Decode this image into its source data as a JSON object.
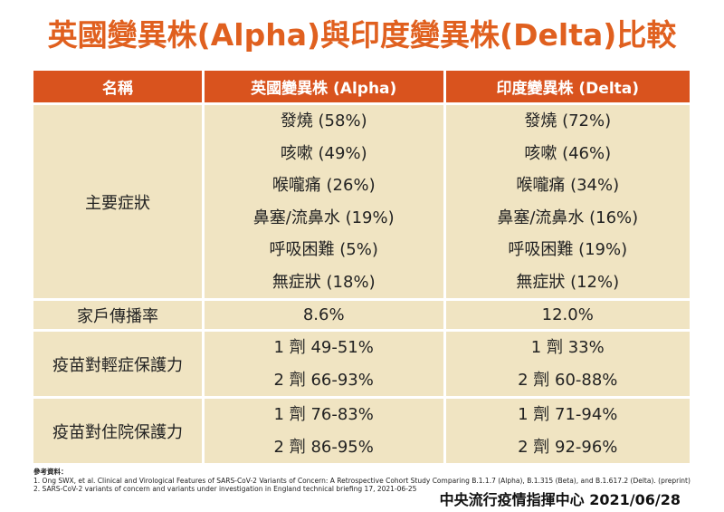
{
  "title": "英國變異株(Alpha)與印度變異株(Delta)比較",
  "table": {
    "headers": [
      "名稱",
      "英國變異株 (Alpha)",
      "印度變異株 (Delta)"
    ],
    "rows": [
      {
        "label": "主要症狀",
        "alpha": [
          "發燒 (58%)",
          "咳嗽 (49%)",
          "喉嚨痛 (26%)",
          "鼻塞/流鼻水 (19%)",
          "呼吸困難 (5%)",
          "無症狀 (18%)"
        ],
        "delta": [
          "發燒 (72%)",
          "咳嗽 (46%)",
          "喉嚨痛 (34%)",
          "鼻塞/流鼻水 (16%)",
          "呼吸困難 (19%)",
          "無症狀 (12%)"
        ]
      },
      {
        "label": "家戶傳播率",
        "alpha": [
          "8.6%"
        ],
        "delta": [
          "12.0%"
        ]
      },
      {
        "label": "疫苗對輕症保護力",
        "alpha": [
          "1 劑 49-51%",
          "2 劑 66-93%"
        ],
        "delta": [
          "1 劑 33%",
          "2 劑 60-88%"
        ]
      },
      {
        "label": "疫苗對住院保護力",
        "alpha": [
          "1 劑 76-83%",
          "2 劑 86-95%"
        ],
        "delta": [
          "1 劑 71-94%",
          "2 劑 92-96%"
        ]
      }
    ]
  },
  "references": {
    "heading": "參考資料：",
    "items": [
      "1. Ong SWX, et al. Clinical and Virological Features of SARS-CoV-2 Variants of Concern: A Retrospective Cohort Study Comparing B.1.1.7 (Alpha), B.1.315 (Beta), and B.1.617.2 (Delta). (preprint)",
      "2. SARS-CoV-2 variants of concern and variants under investigation in England technical briefing 17, 2021-06-25"
    ]
  },
  "footer": "中央流行疫情指揮中心 2021/06/28",
  "colors": {
    "title": "#E0601F",
    "header_bg": "#D9531E",
    "cell_bg": "#F0E4C2"
  }
}
